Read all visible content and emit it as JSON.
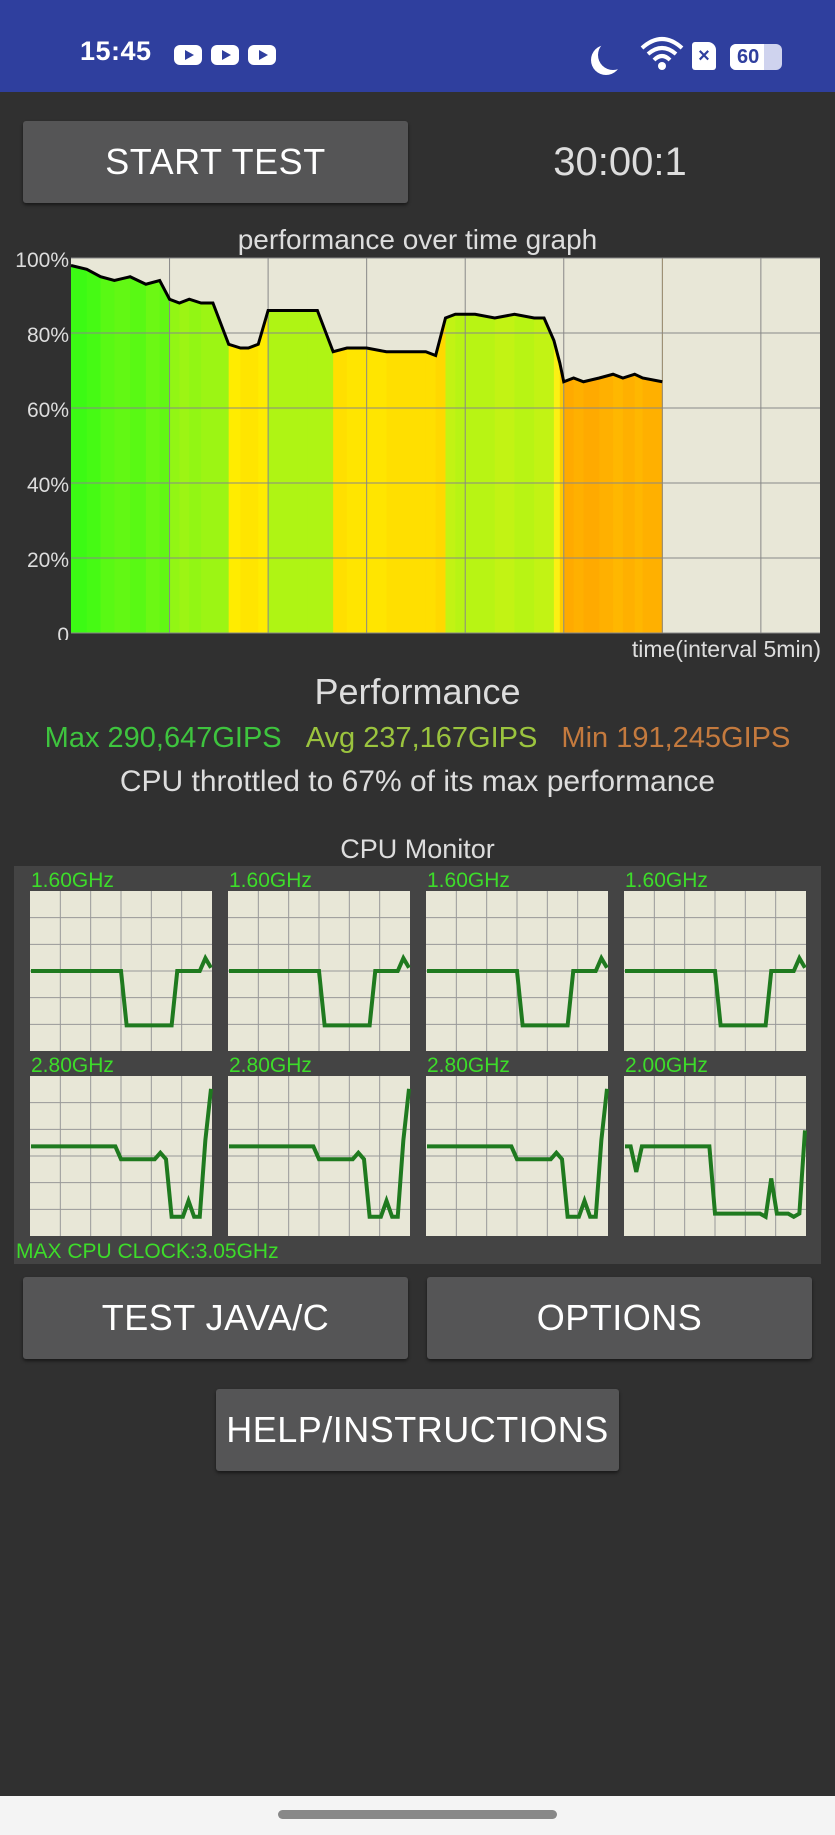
{
  "status_bar": {
    "time": "15:45",
    "notification_icons": [
      "youtube-icon",
      "youtube-icon",
      "youtube-icon"
    ],
    "battery": "60"
  },
  "controls": {
    "start_label": "START TEST",
    "timer": "30:00:1",
    "test_java_label": "TEST JAVA/C",
    "options_label": "OPTIONS",
    "help_label": "HELP/INSTRUCTIONS"
  },
  "performance_graph": {
    "title": "performance over time graph",
    "x_label": "time(interval 5min)",
    "y_ticks": [
      "100%",
      "80%",
      "60%",
      "40%",
      "20%",
      "0"
    ]
  },
  "performance": {
    "heading": "Performance",
    "max": "Max 290,647GIPS",
    "avg": "Avg 237,167GIPS",
    "min": "Min 191,245GIPS",
    "throttle_text": "CPU throttled to 67% of its max performance"
  },
  "colors": {
    "max": "#3ec43e",
    "avg": "#9bc43e",
    "min": "#c47a3e",
    "graph_bg": "#e8e7d7",
    "cpu_line": "#1f7a1f"
  },
  "chart_data": {
    "type": "area",
    "title": "performance over time graph",
    "xlabel": "time(interval 5min)",
    "ylabel": "",
    "ylim": [
      0,
      100
    ],
    "y_tick_labels": [
      "100%",
      "80%",
      "60%",
      "40%",
      "20%",
      "0"
    ],
    "x_unit": "minutes",
    "xlim": [
      0,
      38
    ],
    "series": [
      {
        "x": [
          0,
          0.8,
          1.5,
          2.2,
          3.0,
          3.8,
          4.5,
          5.0,
          5.5,
          6.0,
          6.6,
          7.2,
          8.0,
          8.6,
          9.0,
          9.5,
          10.0,
          10.8,
          11.5,
          12.0,
          12.5,
          13.3,
          14.0,
          15.0,
          16.0,
          17.0,
          18.0,
          18.5,
          19.0,
          19.5,
          20.0,
          20.5,
          21.5,
          22.5,
          23.5,
          24.0,
          24.5,
          24.8,
          25.0,
          25.5,
          26.0,
          26.8,
          27.5,
          28.0,
          28.6,
          29.0,
          30.0
        ],
        "values": [
          98,
          97,
          95,
          94,
          95,
          93,
          94,
          89,
          88,
          89,
          88,
          88,
          77,
          76,
          76,
          77,
          86,
          86,
          86,
          86,
          86,
          75,
          76,
          76,
          75,
          75,
          75,
          74,
          84,
          85,
          85,
          85,
          84,
          85,
          84,
          84,
          78,
          72,
          67,
          68,
          67,
          68,
          69,
          68,
          69,
          68,
          67
        ]
      }
    ]
  },
  "cpu_monitor": {
    "title": "CPU Monitor",
    "max_clock": "MAX CPU CLOCK:3.05GHz",
    "cores": [
      {
        "freq": "1.60GHz",
        "values": [
          50,
          50,
          50,
          50,
          50,
          50,
          50,
          50,
          50,
          50,
          50,
          50,
          50,
          50,
          50,
          50,
          50,
          16,
          16,
          16,
          16,
          16,
          16,
          16,
          16,
          16,
          50,
          50,
          50,
          50,
          50,
          58,
          52
        ]
      },
      {
        "freq": "1.60GHz",
        "values": [
          50,
          50,
          50,
          50,
          50,
          50,
          50,
          50,
          50,
          50,
          50,
          50,
          50,
          50,
          50,
          50,
          50,
          16,
          16,
          16,
          16,
          16,
          16,
          16,
          16,
          16,
          50,
          50,
          50,
          50,
          50,
          58,
          52
        ]
      },
      {
        "freq": "1.60GHz",
        "values": [
          50,
          50,
          50,
          50,
          50,
          50,
          50,
          50,
          50,
          50,
          50,
          50,
          50,
          50,
          50,
          50,
          50,
          16,
          16,
          16,
          16,
          16,
          16,
          16,
          16,
          16,
          50,
          50,
          50,
          50,
          50,
          58,
          52
        ]
      },
      {
        "freq": "1.60GHz",
        "values": [
          50,
          50,
          50,
          50,
          50,
          50,
          50,
          50,
          50,
          50,
          50,
          50,
          50,
          50,
          50,
          50,
          50,
          16,
          16,
          16,
          16,
          16,
          16,
          16,
          16,
          16,
          50,
          50,
          50,
          50,
          50,
          58,
          52
        ]
      },
      {
        "freq": "2.80GHz",
        "values": [
          56,
          56,
          56,
          56,
          56,
          56,
          56,
          56,
          56,
          56,
          56,
          56,
          56,
          56,
          56,
          56,
          48,
          48,
          48,
          48,
          48,
          48,
          48,
          52,
          48,
          12,
          12,
          12,
          22,
          12,
          12,
          60,
          92
        ]
      },
      {
        "freq": "2.80GHz",
        "values": [
          56,
          56,
          56,
          56,
          56,
          56,
          56,
          56,
          56,
          56,
          56,
          56,
          56,
          56,
          56,
          56,
          48,
          48,
          48,
          48,
          48,
          48,
          48,
          52,
          48,
          12,
          12,
          12,
          22,
          12,
          12,
          60,
          92
        ]
      },
      {
        "freq": "2.80GHz",
        "values": [
          56,
          56,
          56,
          56,
          56,
          56,
          56,
          56,
          56,
          56,
          56,
          56,
          56,
          56,
          56,
          56,
          48,
          48,
          48,
          48,
          48,
          48,
          48,
          52,
          48,
          12,
          12,
          12,
          22,
          12,
          12,
          60,
          92
        ]
      },
      {
        "freq": "2.00GHz",
        "values": [
          56,
          56,
          40,
          56,
          56,
          56,
          56,
          56,
          56,
          56,
          56,
          56,
          56,
          56,
          56,
          56,
          14,
          14,
          14,
          14,
          14,
          14,
          14,
          14,
          14,
          12,
          36,
          14,
          14,
          14,
          12,
          14,
          66
        ]
      }
    ]
  }
}
